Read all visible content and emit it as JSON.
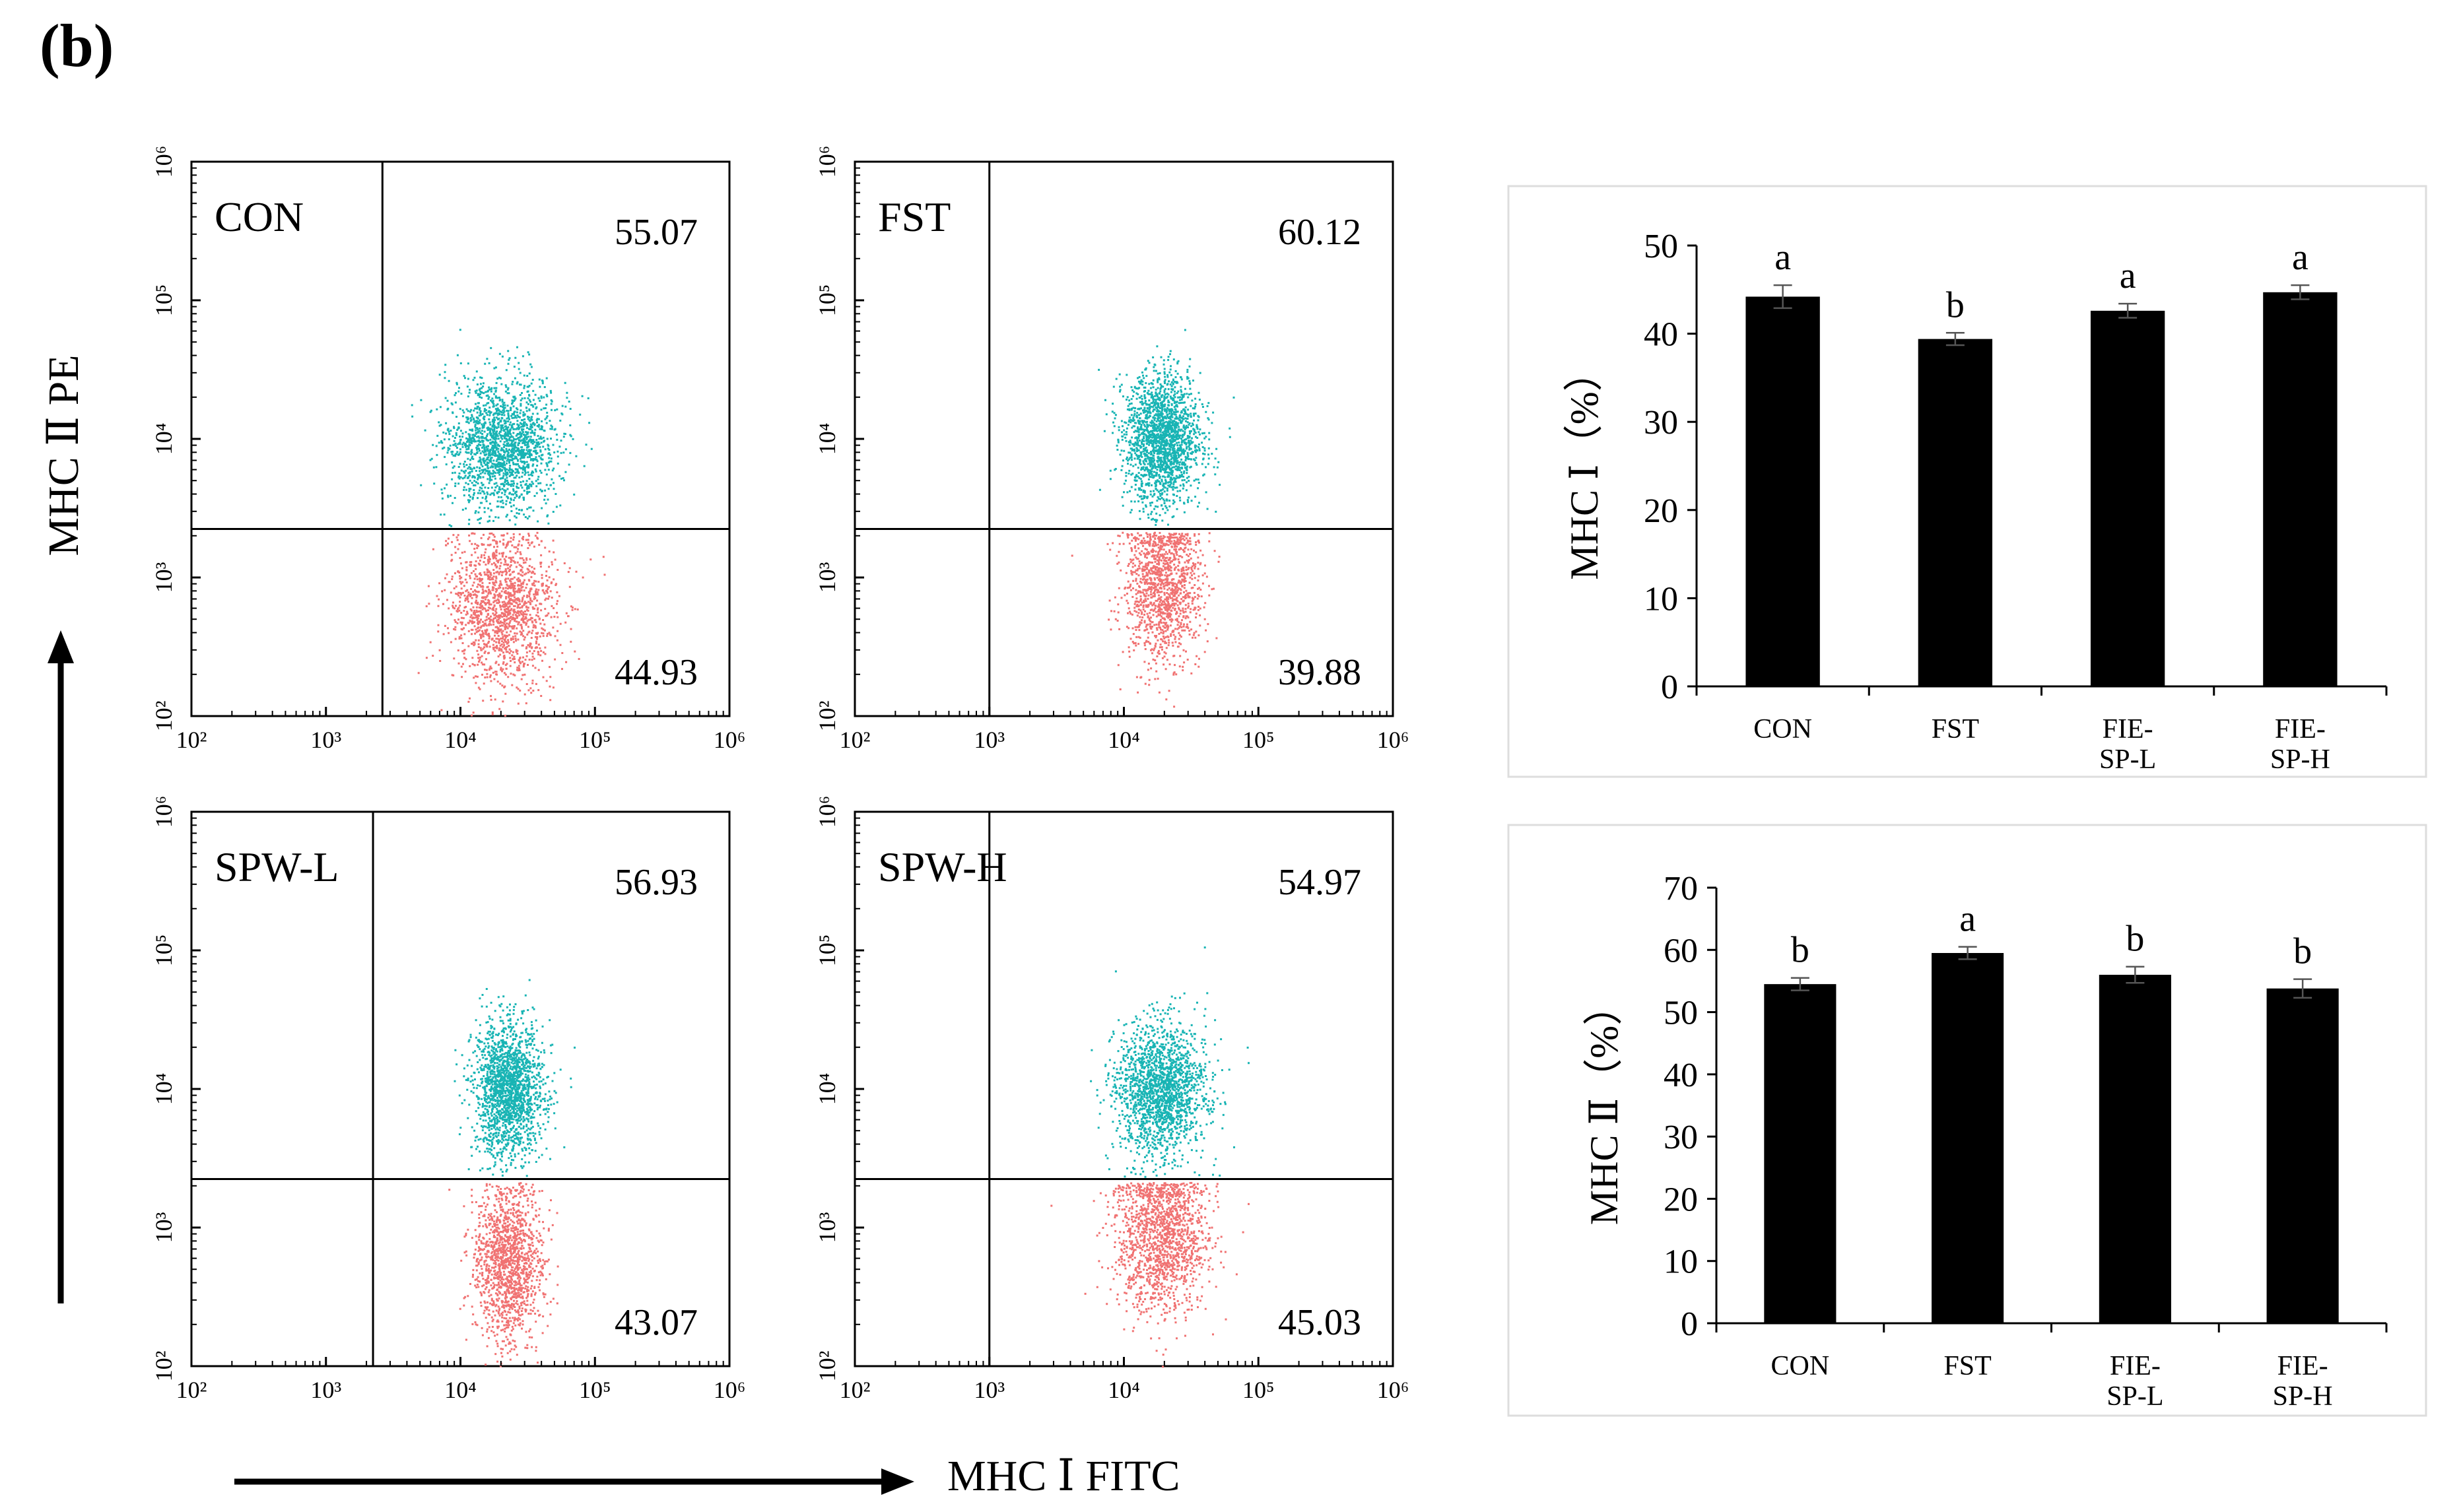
{
  "panel_label": "(b)",
  "colors": {
    "upper_events": "#18b4b4",
    "lower_events": "#f07272",
    "bar_fill": "#000000",
    "frame": "#000000",
    "box_border": "#dddddd"
  },
  "flow": {
    "y_axis_label": "MHC Ⅱ PE",
    "x_axis_label": "MHC Ⅰ FITC",
    "tick_labels": [
      "10²",
      "10³",
      "10⁴",
      "10⁵",
      "10⁶"
    ],
    "tick_exponents": [
      2,
      3,
      4,
      5,
      6
    ],
    "axis_log_range": [
      2,
      6
    ],
    "plots": [
      {
        "sample": "CON",
        "upper_pct": "55.07",
        "lower_pct": "44.93",
        "v_gate_log": 3.42,
        "h_gate_log": 3.35,
        "upper_events": 1800,
        "lower_events": 1500,
        "cx_log": 4.3,
        "cx_spread_log": 0.2,
        "cy_up_log": 3.95,
        "cy_lo_log": 2.8
      },
      {
        "sample": "FST",
        "upper_pct": "60.12",
        "lower_pct": "39.88",
        "v_gate_log": 3.0,
        "h_gate_log": 3.35,
        "upper_events": 1900,
        "lower_events": 1300,
        "cx_log": 4.28,
        "cx_spread_log": 0.14,
        "cy_up_log": 4.0,
        "cy_lo_log": 2.95
      },
      {
        "sample": "SPW-L",
        "upper_pct": "56.93",
        "lower_pct": "43.07",
        "v_gate_log": 3.35,
        "h_gate_log": 3.35,
        "upper_events": 1800,
        "lower_events": 1400,
        "cx_log": 4.35,
        "cx_spread_log": 0.13,
        "cy_up_log": 4.0,
        "cy_lo_log": 2.75
      },
      {
        "sample": "SPW-H",
        "upper_pct": "54.97",
        "lower_pct": "45.03",
        "v_gate_log": 3.0,
        "h_gate_log": 3.35,
        "upper_events": 1800,
        "lower_events": 1500,
        "cx_log": 4.27,
        "cx_spread_log": 0.17,
        "cy_up_log": 4.0,
        "cy_lo_log": 2.95
      }
    ]
  },
  "chart_data": [
    {
      "type": "bar",
      "title": "",
      "ylabel": "MHC Ⅰ（%）",
      "xlabel": "",
      "ylim": [
        0,
        50
      ],
      "yticks": [
        0,
        10,
        20,
        30,
        40,
        50
      ],
      "categories": [
        [
          "CON"
        ],
        [
          "FST"
        ],
        [
          "FIE-",
          "SP-L"
        ],
        [
          "FIE-",
          "SP-H"
        ]
      ],
      "values": [
        44.2,
        39.4,
        42.6,
        44.7
      ],
      "errors": [
        1.3,
        0.7,
        0.8,
        0.8
      ],
      "significance": [
        "a",
        "b",
        "a",
        "a"
      ]
    },
    {
      "type": "bar",
      "title": "",
      "ylabel": "MHC Ⅱ（%）",
      "xlabel": "",
      "ylim": [
        0,
        70
      ],
      "yticks": [
        0,
        10,
        20,
        30,
        40,
        50,
        60,
        70
      ],
      "categories": [
        [
          "CON"
        ],
        [
          "FST"
        ],
        [
          "FIE-",
          "SP-L"
        ],
        [
          "FIE-",
          "SP-H"
        ]
      ],
      "values": [
        54.5,
        59.5,
        56.0,
        53.8
      ],
      "errors": [
        1.0,
        1.0,
        1.3,
        1.5
      ],
      "significance": [
        "b",
        "a",
        "b",
        "b"
      ]
    }
  ]
}
